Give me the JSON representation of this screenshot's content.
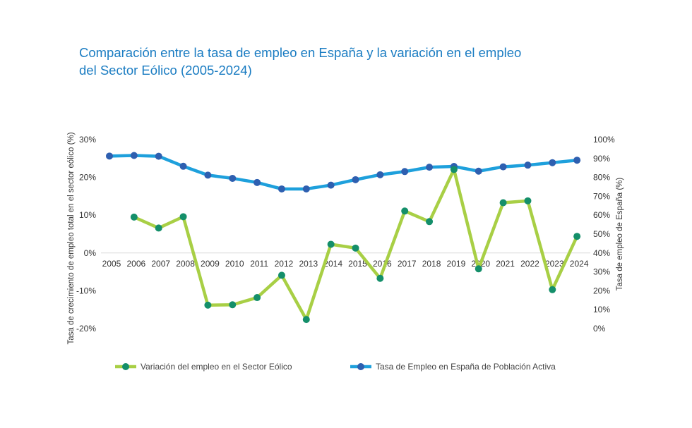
{
  "chart_data": {
    "type": "line",
    "title_lines": [
      "Comparación entre la tasa de empleo en España y la variación en el empleo",
      "del Sector Eólico (2005-2024)"
    ],
    "categories": [
      "2005",
      "2006",
      "2007",
      "2008",
      "2009",
      "2010",
      "2011",
      "2012",
      "2013",
      "2014",
      "2015",
      "2016",
      "2017",
      "2018",
      "2019",
      "2020",
      "2021",
      "2022",
      "2023",
      "2024"
    ],
    "y_left": {
      "label": "Tasa de crecimiento de empleo total en el sector eólico (%)",
      "ticks": [
        "30%",
        "20%",
        "10%",
        "0%",
        "-10%",
        "-20%"
      ],
      "range": [
        -20,
        30
      ]
    },
    "y_right": {
      "label": "Tasa de empleo de España (%)",
      "ticks": [
        "100%",
        "90%",
        "80%",
        "70%",
        "60%",
        "50%",
        "40%",
        "30%",
        "20%",
        "10%",
        "0%"
      ],
      "range": [
        0,
        100
      ]
    },
    "series": [
      {
        "name": "Variación del empleo en el Sector Eólico",
        "axis": "left",
        "line_color": "#a8cf45",
        "marker_color": "#148f6a",
        "values": [
          null,
          9.5,
          6.6,
          9.6,
          -13.8,
          -13.7,
          -11.8,
          -5.9,
          -17.6,
          2.3,
          1.3,
          -6.7,
          11.1,
          8.3,
          22.1,
          -4.2,
          13.3,
          13.8,
          -9.7,
          4.4
        ]
      },
      {
        "name": "Tasa de Empleo en España de Población Activa",
        "axis": "right",
        "line_color": "#1ea0dc",
        "marker_color": "#2e5fb0",
        "values": [
          91.3,
          91.6,
          91.2,
          85.9,
          81.2,
          79.5,
          77.3,
          73.9,
          73.9,
          75.9,
          78.8,
          81.4,
          83.1,
          85.4,
          85.8,
          83.3,
          85.6,
          86.5,
          87.8,
          89.1
        ]
      }
    ],
    "legend_position": "bottom",
    "grid": false
  }
}
